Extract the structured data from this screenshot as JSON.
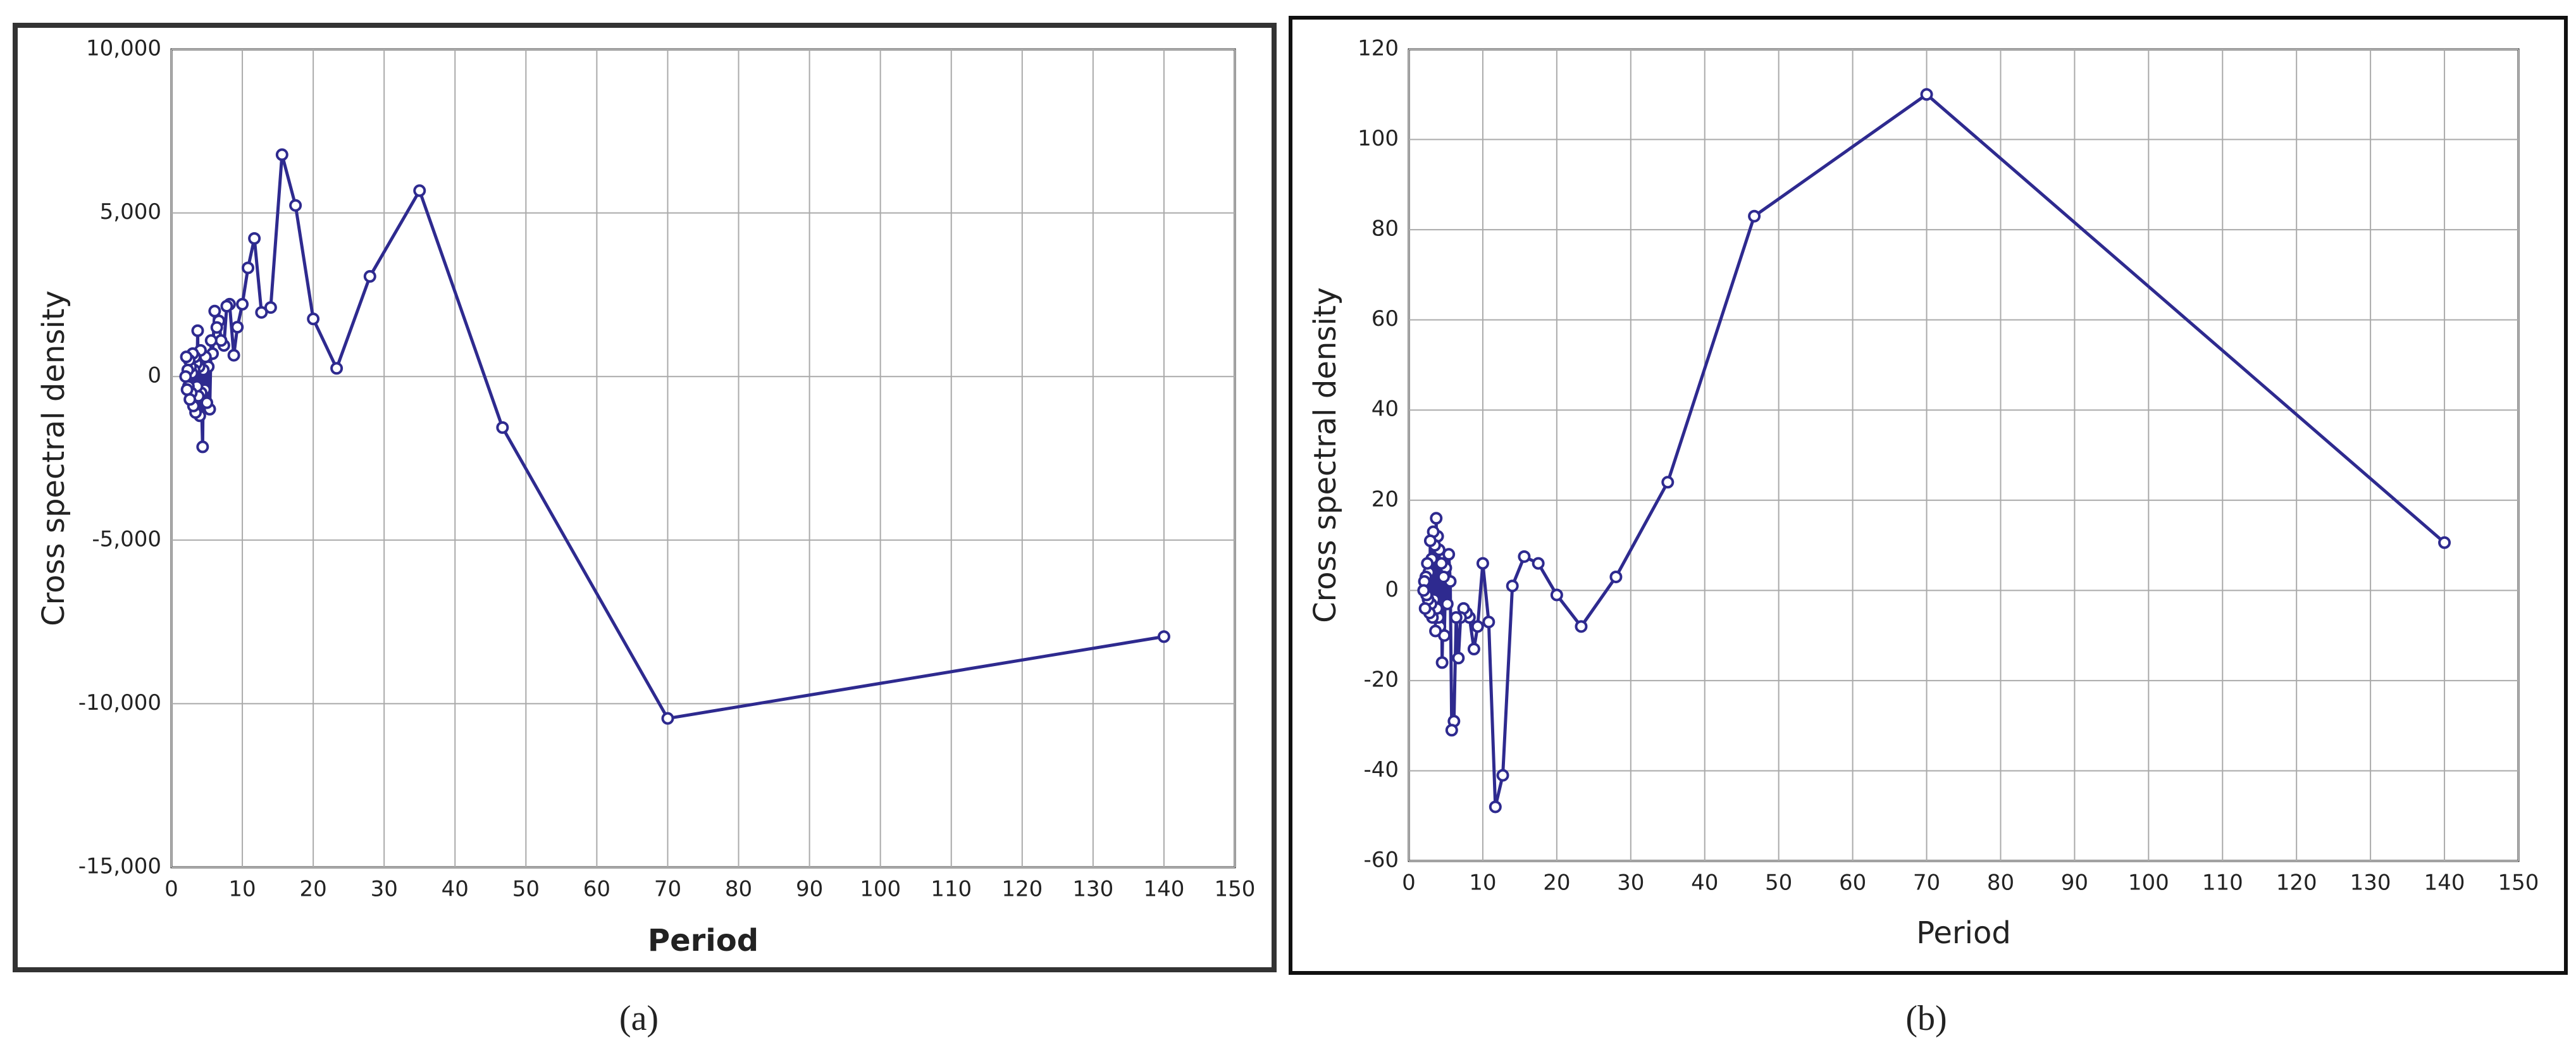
{
  "chart_data": [
    {
      "type": "line",
      "caption": "(a)",
      "xlabel": "Period",
      "ylabel": "Cross spectral density",
      "color": "#2e2a8f",
      "grid": true,
      "x": [
        140,
        70,
        46.7,
        35,
        28,
        23.3,
        20,
        17.5,
        15.6,
        14,
        12.7,
        11.7,
        10.8,
        10,
        9.3,
        8.8,
        8.2,
        7.8,
        7.4,
        7,
        6.7,
        6.4,
        6.1,
        5.8,
        5.6,
        5.4,
        5.2,
        5,
        4.8,
        4.7,
        4.5,
        4.4,
        4.2,
        4.1,
        4,
        3.9,
        3.8,
        3.7,
        3.6,
        3.5,
        3.4,
        3.3,
        3.2,
        3.1,
        3,
        2.9,
        2.8,
        2.7,
        2.6,
        2.5,
        2.4,
        2.3,
        2.2,
        2.1,
        2
      ],
      "values": [
        -7950,
        -10450,
        -1560,
        5680,
        3060,
        250,
        1760,
        5230,
        6780,
        2110,
        1960,
        4220,
        3320,
        2210,
        1510,
        650,
        2210,
        2150,
        950,
        1100,
        1700,
        1500,
        2000,
        700,
        1100,
        -1000,
        300,
        -800,
        600,
        -400,
        200,
        -2150,
        -500,
        800,
        -1200,
        300,
        -600,
        1400,
        -300,
        400,
        -1100,
        600,
        200,
        -900,
        700,
        100,
        -500,
        300,
        -700,
        500,
        -300,
        200,
        -400,
        600,
        0
      ],
      "xlim": [
        0,
        150
      ],
      "xticks": [
        0,
        10,
        20,
        30,
        40,
        50,
        60,
        70,
        80,
        90,
        100,
        110,
        120,
        130,
        140,
        150
      ],
      "ylim": [
        -15000,
        10000
      ],
      "yticks": [
        {
          "value": 10000,
          "label": "10,000"
        },
        {
          "value": 5000,
          "label": "5,000"
        },
        0,
        {
          "value": -5000,
          "label": "-5,000"
        },
        {
          "value": -10000,
          "label": "-10,000"
        },
        {
          "value": -15000,
          "label": "-15,000"
        }
      ]
    },
    {
      "type": "line",
      "caption": "(b)",
      "xlabel": "Period",
      "ylabel": "Cross spectral density",
      "color": "#2e2a8f",
      "grid": true,
      "x": [
        140,
        70,
        46.7,
        35,
        28,
        23.3,
        20,
        17.5,
        15.6,
        14,
        12.7,
        11.7,
        10.8,
        10,
        9.3,
        8.8,
        8.2,
        7.8,
        7.4,
        7,
        6.7,
        6.4,
        6.1,
        5.8,
        5.6,
        5.4,
        5.2,
        5,
        4.8,
        4.7,
        4.5,
        4.4,
        4.2,
        4.1,
        4,
        3.9,
        3.8,
        3.7,
        3.6,
        3.5,
        3.4,
        3.3,
        3.2,
        3.1,
        3,
        2.9,
        2.8,
        2.7,
        2.6,
        2.5,
        2.4,
        2.3,
        2.2,
        2.1,
        2
      ],
      "values": [
        10.6,
        110,
        83,
        24,
        3,
        -8,
        -1,
        6,
        7.5,
        1,
        -41,
        -48,
        -7,
        6,
        -8,
        -13,
        -6,
        -5,
        -4,
        -6,
        -15,
        -6,
        -29,
        -31,
        2,
        8,
        -3,
        5,
        -10,
        3,
        -16,
        6,
        -8,
        9,
        -6,
        12,
        -4,
        16,
        -9,
        10,
        -2,
        13,
        -6,
        7,
        -3,
        11,
        -5,
        4,
        -2,
        6,
        -1,
        3,
        -4,
        2,
        0
      ],
      "xlim": [
        0,
        150
      ],
      "xticks": [
        0,
        10,
        20,
        30,
        40,
        50,
        60,
        70,
        80,
        90,
        100,
        110,
        120,
        130,
        140,
        150
      ],
      "ylim": [
        -60,
        120
      ],
      "yticks": [
        120,
        100,
        80,
        60,
        40,
        20,
        0,
        -20,
        -40,
        -60
      ]
    }
  ]
}
